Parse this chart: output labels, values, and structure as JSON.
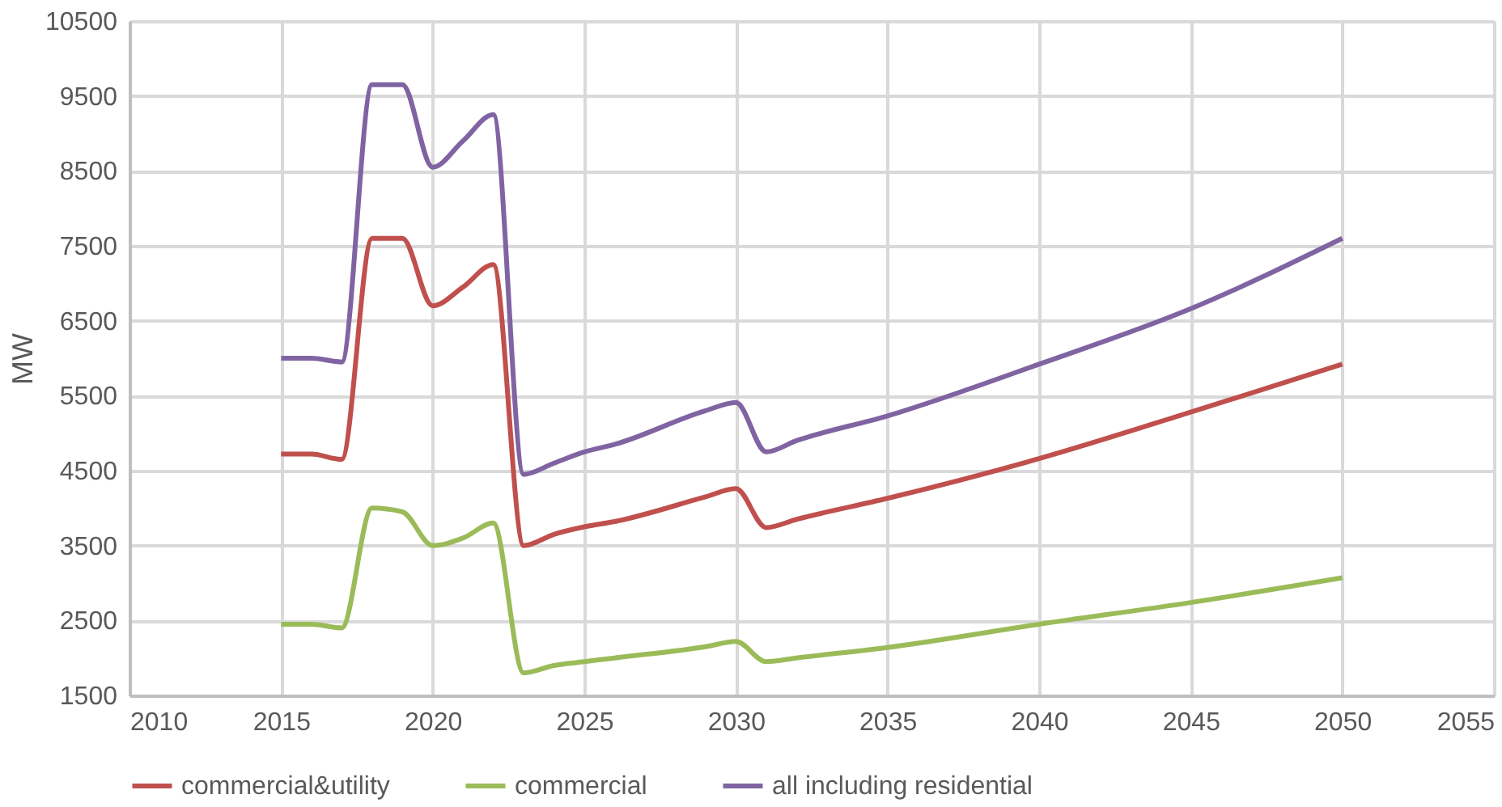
{
  "chart_data": {
    "type": "line",
    "ylabel": "MW",
    "xlim": [
      2010,
      2055
    ],
    "xticks": [
      2010,
      2015,
      2020,
      2025,
      2030,
      2035,
      2040,
      2045,
      2050,
      2055
    ],
    "ylim": [
      1500,
      10500
    ],
    "yticks": [
      1500,
      2500,
      3500,
      4500,
      5500,
      6500,
      7500,
      8500,
      9500,
      10500
    ],
    "grid": true,
    "legend": "bottom",
    "line_style": "solid",
    "marker": "none",
    "x": [
      2015,
      2016,
      2017,
      2018,
      2019,
      2020,
      2021,
      2022,
      2023,
      2024,
      2025,
      2026,
      2029,
      2030,
      2031,
      2032,
      2035,
      2040,
      2045,
      2050
    ],
    "series": [
      {
        "name": "commercial&utility",
        "color": "#c0504d",
        "values": [
          4720,
          4720,
          4650,
          7600,
          7600,
          6700,
          6950,
          7250,
          3500,
          3650,
          3750,
          3820,
          4150,
          4260,
          3740,
          3850,
          4130,
          4660,
          5280,
          5920
        ]
      },
      {
        "name": "commercial",
        "color": "#9bbb59",
        "values": [
          2450,
          2450,
          2400,
          4000,
          3950,
          3500,
          3600,
          3800,
          1800,
          1900,
          1950,
          2000,
          2150,
          2220,
          1950,
          2000,
          2140,
          2450,
          2740,
          3070
        ]
      },
      {
        "name": "all including residential",
        "color": "#8064a2",
        "values": [
          6000,
          6000,
          5950,
          9650,
          9650,
          8550,
          8900,
          9250,
          4450,
          4600,
          4750,
          4850,
          5300,
          5410,
          4750,
          4900,
          5230,
          5920,
          6660,
          7600
        ]
      }
    ]
  }
}
